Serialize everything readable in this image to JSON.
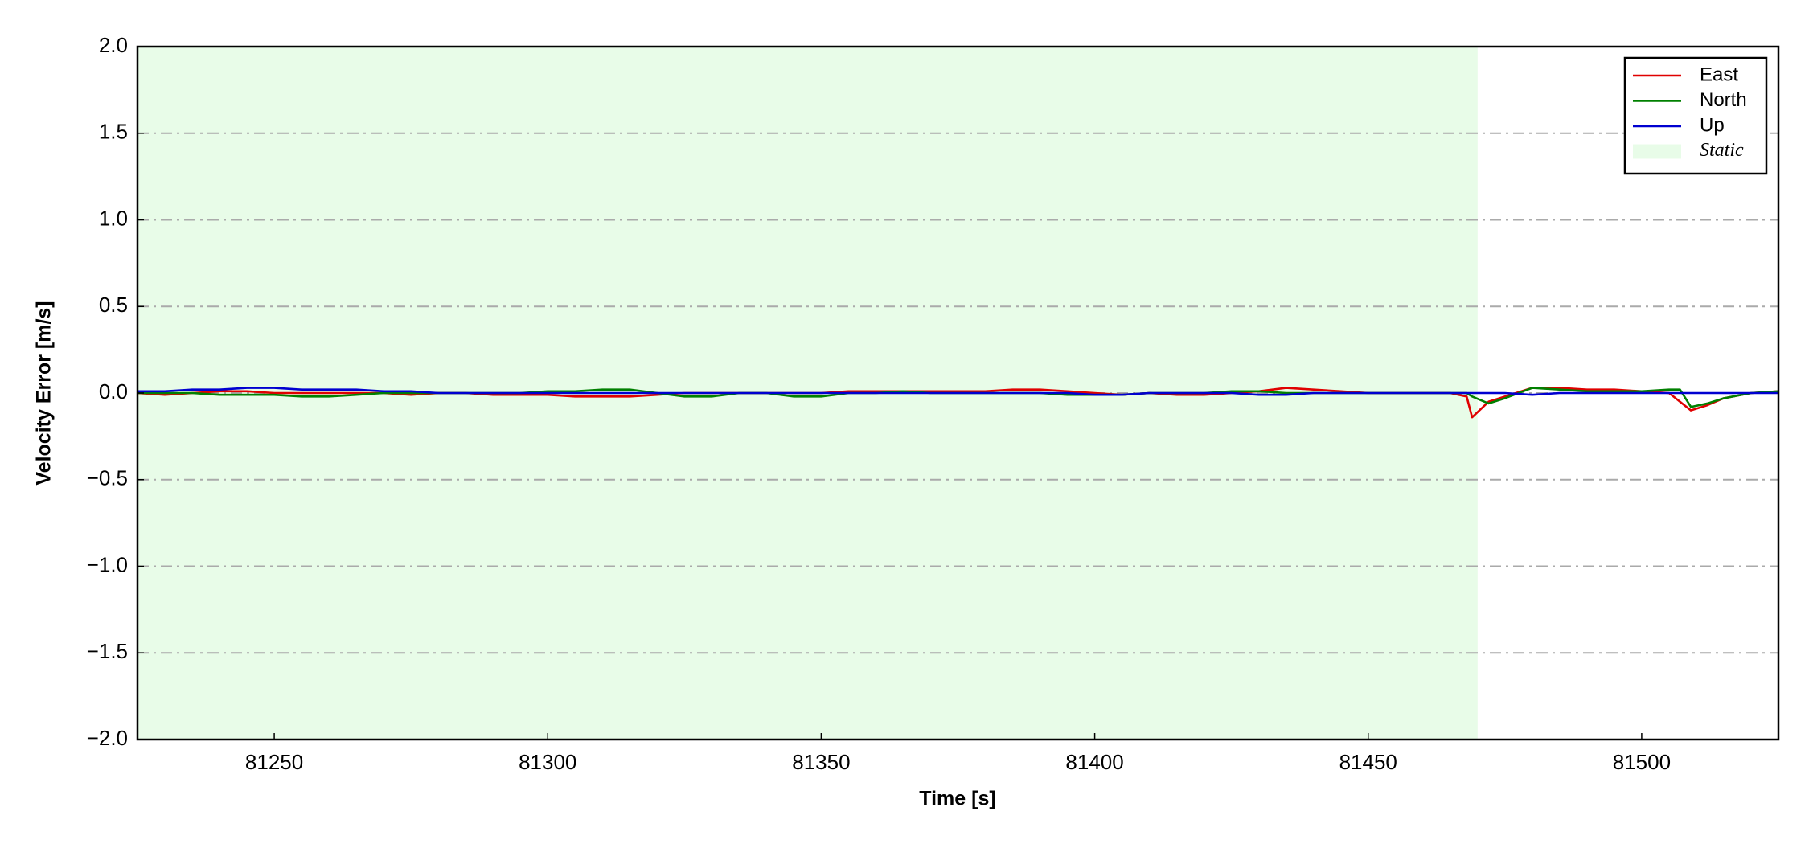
{
  "chart_data": {
    "type": "line",
    "xlabel": "Time [s]",
    "ylabel": "Velocity Error [m/s]",
    "xlim": [
      81225,
      81525
    ],
    "xticks": [
      81250,
      81300,
      81350,
      81400,
      81450,
      81500
    ],
    "ylim": [
      -2.0,
      2.0
    ],
    "yticks": [
      {
        "value": -2.0,
        "label": "−2.0"
      },
      {
        "value": -1.5,
        "label": "−1.5"
      },
      {
        "value": -1.0,
        "label": "−1.0"
      },
      {
        "value": -0.5,
        "label": "−0.5"
      },
      {
        "value": 0.0,
        "label": "0.0"
      },
      {
        "value": 0.5,
        "label": "0.5"
      },
      {
        "value": 1.0,
        "label": "1.0"
      },
      {
        "value": 1.5,
        "label": "1.5"
      },
      {
        "value": 2.0,
        "label": "2.0"
      }
    ],
    "grid": true,
    "legend": "upper right",
    "spans": [
      {
        "name": "Static",
        "start": 81225,
        "end": 81470,
        "color": "#e8fce8"
      }
    ],
    "x": [
      81225,
      81230,
      81235,
      81240,
      81245,
      81250,
      81255,
      81260,
      81265,
      81270,
      81275,
      81280,
      81285,
      81290,
      81295,
      81300,
      81305,
      81310,
      81315,
      81320,
      81325,
      81330,
      81335,
      81340,
      81345,
      81350,
      81355,
      81360,
      81365,
      81370,
      81375,
      81380,
      81385,
      81390,
      81395,
      81400,
      81405,
      81410,
      81415,
      81420,
      81425,
      81430,
      81435,
      81440,
      81445,
      81450,
      81455,
      81460,
      81465,
      81468,
      81469,
      81472,
      81475,
      81480,
      81485,
      81490,
      81495,
      81500,
      81505,
      81507,
      81509,
      81512,
      81515,
      81520,
      81525
    ],
    "series": [
      {
        "name": "East",
        "color": "#e00000",
        "values": [
          0.0,
          -0.01,
          0.0,
          0.01,
          0.01,
          0.0,
          0.0,
          0.0,
          0.0,
          0.0,
          -0.01,
          0.0,
          0.0,
          -0.01,
          -0.01,
          -0.01,
          -0.02,
          -0.02,
          -0.02,
          -0.01,
          0.0,
          0.0,
          0.0,
          0.0,
          0.0,
          0.0,
          0.01,
          0.01,
          0.01,
          0.01,
          0.01,
          0.01,
          0.02,
          0.02,
          0.01,
          0.0,
          -0.01,
          0.0,
          -0.01,
          -0.01,
          0.0,
          0.01,
          0.03,
          0.02,
          0.01,
          0.0,
          0.0,
          0.0,
          0.0,
          -0.02,
          -0.14,
          -0.05,
          -0.02,
          0.03,
          0.03,
          0.02,
          0.02,
          0.01,
          0.0,
          -0.05,
          -0.1,
          -0.07,
          -0.03,
          0.0,
          0.01
        ]
      },
      {
        "name": "North",
        "color": "#008000",
        "values": [
          0,
          0,
          0,
          -0.01,
          -0.01,
          -0.01,
          -0.02,
          -0.02,
          -0.01,
          0,
          0,
          0,
          0,
          0,
          0,
          0.01,
          0.01,
          0.02,
          0.02,
          0,
          -0.02,
          -0.02,
          0,
          0,
          -0.02,
          -0.02,
          0,
          0,
          0.01,
          0,
          0,
          0,
          0,
          0,
          -0.01,
          -0.01,
          -0.01,
          0,
          0,
          0,
          0.01,
          0.01,
          0,
          0,
          0,
          0,
          0,
          0,
          0,
          0,
          -0.02,
          -0.06,
          -0.03,
          0.03,
          0.02,
          0.01,
          0.01,
          0.01,
          0.02,
          0.02,
          -0.08,
          -0.06,
          -0.03,
          0,
          0.01
        ]
      },
      {
        "name": "Up",
        "color": "#0000d0",
        "values": [
          0.01,
          0.01,
          0.02,
          0.02,
          0.03,
          0.03,
          0.02,
          0.02,
          0.02,
          0.01,
          0.01,
          0,
          0,
          0,
          0,
          0,
          0,
          0,
          0,
          0,
          0,
          0,
          0,
          0,
          0,
          0,
          0,
          0,
          0,
          0,
          0,
          0,
          0,
          0,
          0,
          -0.01,
          -0.01,
          0,
          0,
          0,
          0,
          -0.01,
          -0.01,
          0,
          0,
          0,
          0,
          0,
          0,
          0,
          0,
          0,
          0,
          -0.01,
          0,
          0,
          0,
          0,
          0,
          0,
          0,
          0,
          0,
          0,
          0
        ]
      }
    ]
  }
}
